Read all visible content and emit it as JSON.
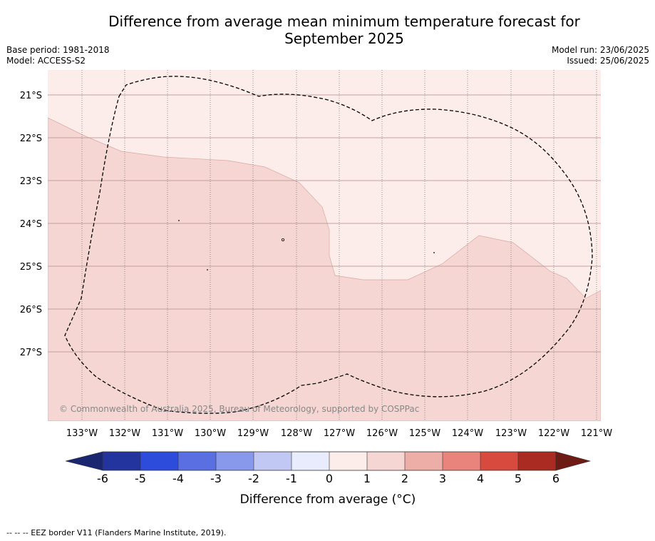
{
  "title": {
    "line1": "Difference from average mean minimum temperature forecast for",
    "line2": "September 2025"
  },
  "meta": {
    "base_period": "Base period: 1981-2018",
    "model": "Model: ACCESS-S2",
    "model_run": "Model run: 23/06/2025",
    "issued": "Issued: 25/06/2025"
  },
  "map": {
    "lat_labels": [
      "21°S",
      "22°S",
      "23°S",
      "24°S",
      "25°S",
      "26°S",
      "27°S"
    ],
    "lon_labels": [
      "133°W",
      "132°W",
      "131°W",
      "130°W",
      "129°W",
      "128°W",
      "127°W",
      "126°W",
      "125°W",
      "124°W",
      "123°W",
      "122°W",
      "121°W"
    ],
    "copyright": "© Commonwealth of Australia 2025, Bureau of Meteorology, supported by COSPPac",
    "region_colors": {
      "anomaly_0_to_1": "#fcecea",
      "anomaly_1_to_2": "#f5d6d3"
    }
  },
  "colorbar": {
    "tick_labels": [
      "-6",
      "-5",
      "-4",
      "-3",
      "-2",
      "-1",
      "0",
      "1",
      "2",
      "3",
      "4",
      "5",
      "6"
    ],
    "colors": [
      "#24349f",
      "#2e4cdc",
      "#5a6fe2",
      "#8898ea",
      "#c1c8f3",
      "#e9ecfc",
      "#fcecea",
      "#f5d6d3",
      "#eeaea8",
      "#e8847c",
      "#d94a3e",
      "#a92b22"
    ],
    "low_extend_color": "#1a2670",
    "high_extend_color": "#6e1a15",
    "title": "Difference from average (°C)"
  },
  "footer": "--  --  -- EEZ border V11 (Flanders Marine Institute, 2019)."
}
